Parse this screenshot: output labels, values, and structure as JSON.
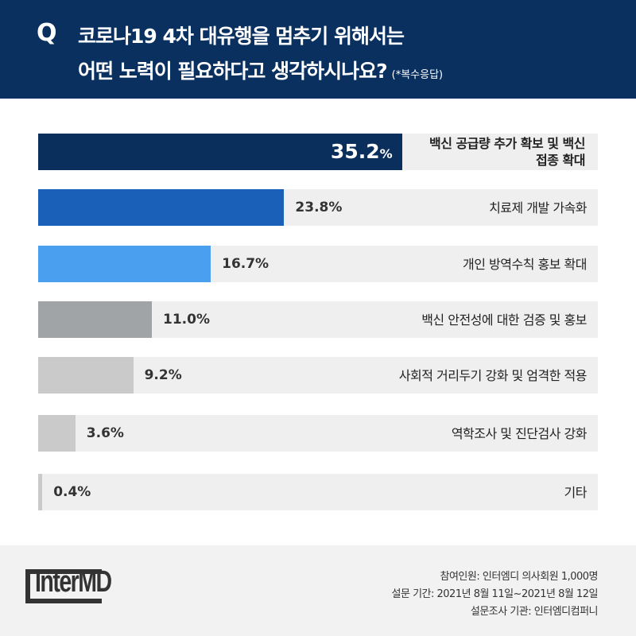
{
  "header": {
    "q_mark": "Q",
    "title_line1": "코로나19 4차 대유행을 멈추기 위해서는",
    "title_line2": "어떤 노력이 필요하다고 생각하시나요?",
    "note": "(*복수응답)"
  },
  "chart_data": {
    "type": "bar",
    "orientation": "horizontal",
    "title": "코로나19 4차 대유행을 멈추기 위해서는 어떤 노력이 필요하다고 생각하시나요?",
    "categories": [
      "백신 공급량 추가 확보 및 백신 접종 확대",
      "치료제 개발 가속화",
      "개인 방역수칙 홍보 확대",
      "백신 안전성에 대한 검증 및 홍보",
      "사회적 거리두기 강화 및 엄격한 적용",
      "역학조사 및 진단검사 강화",
      "기타"
    ],
    "values": [
      35.2,
      23.8,
      16.7,
      11.0,
      9.2,
      3.6,
      0.4
    ],
    "value_labels": [
      "35.2",
      "23.8%",
      "16.7%",
      "11.0%",
      "9.2%",
      "3.6%",
      "0.4%"
    ],
    "percent_sign": "%",
    "colors": [
      "#0a2f5c",
      "#1a60b8",
      "#4a9fef",
      "#a0a4a6",
      "#cacaca",
      "#cacaca",
      "#cacaca"
    ],
    "xlim": [
      0,
      54.15
    ],
    "unit": "%"
  },
  "footer": {
    "logo": "InterMD",
    "line1": "참여인원: 인터엠디 의사회원 1,000명",
    "line2": "설문 기간: 2021년 8월 11일~2021년 8월 12일",
    "line3": "설문조사 기관: 인터엠디컴퍼니"
  }
}
